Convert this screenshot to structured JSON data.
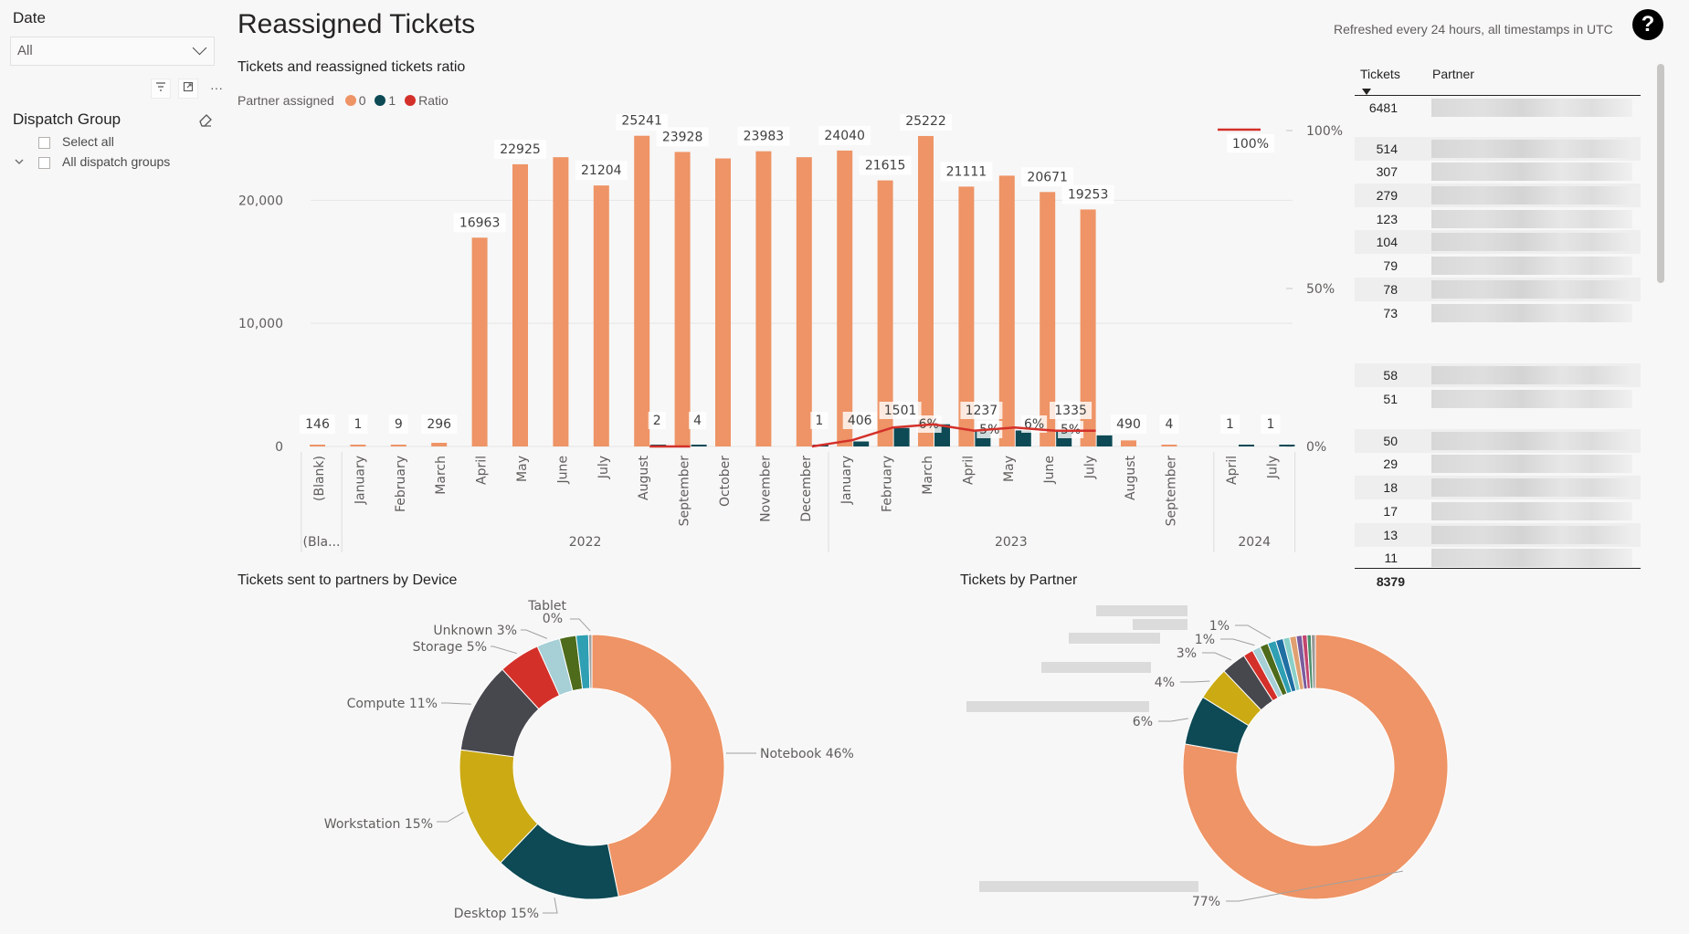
{
  "slicers": {
    "date": {
      "title": "Date",
      "selected": "All"
    },
    "dispatch_group": {
      "title": "Dispatch Group",
      "items": [
        "Select all",
        "All dispatch groups"
      ]
    }
  },
  "header": {
    "title": "Reassigned Tickets",
    "refresh_note": "Refreshed every 24 hours, all timestamps in UTC",
    "help_label": "?"
  },
  "colors": {
    "orange": "#ee9466",
    "teal": "#0d4a55",
    "red": "#d4302a",
    "grid": "#e6e6e6"
  },
  "chart_data": [
    {
      "type": "bar",
      "title": "Tickets and reassigned tickets ratio",
      "legend_title": "Partner assigned",
      "legend": [
        "0",
        "1",
        "Ratio"
      ],
      "categories": [
        "(Blank)",
        "January",
        "February",
        "March",
        "April",
        "May",
        "June",
        "July",
        "August",
        "September",
        "October",
        "November",
        "December",
        "January",
        "February",
        "March",
        "April",
        "May",
        "June",
        "July",
        "August",
        "September",
        "April",
        "July"
      ],
      "groups": [
        {
          "label": "(Bla...",
          "start": 0,
          "end": 0
        },
        {
          "label": "2022",
          "start": 1,
          "end": 12
        },
        {
          "label": "2023",
          "start": 13,
          "end": 21
        },
        {
          "label": "2024",
          "start": 22,
          "end": 23
        }
      ],
      "series": [
        {
          "name": "0",
          "values": [
            146,
            1,
            9,
            296,
            16963,
            22925,
            23500,
            21204,
            25241,
            23928,
            23400,
            23983,
            23500,
            24040,
            21615,
            25222,
            21111,
            22000,
            20671,
            19253,
            490,
            4,
            0,
            0
          ]
        },
        {
          "name": "1",
          "values": [
            0,
            0,
            0,
            0,
            0,
            0,
            0,
            0,
            2,
            4,
            0,
            0,
            1,
            406,
            1501,
            1800,
            1237,
            1300,
            1335,
            900,
            0,
            0,
            1,
            1
          ]
        },
        {
          "name": "Ratio",
          "values": [
            null,
            null,
            null,
            null,
            null,
            null,
            null,
            null,
            0,
            0,
            null,
            null,
            0,
            2,
            6,
            7,
            5,
            6,
            5,
            5,
            null,
            null,
            100,
            100
          ]
        }
      ],
      "value_labels": [
        "146",
        "1",
        "9",
        "296",
        "16963",
        "22925",
        "",
        "21204",
        "25241",
        "23928",
        "",
        "23983",
        "",
        "24040",
        "21615",
        "25222",
        "21111",
        "",
        "20671",
        "19253",
        "490",
        "4",
        "1",
        "1"
      ],
      "extra_labels": [
        {
          "index": 8,
          "text": "2"
        },
        {
          "index": 9,
          "text": "4"
        },
        {
          "index": 12,
          "text": "1"
        },
        {
          "index": 13,
          "text": "406"
        },
        {
          "index": 14,
          "text": "1501"
        },
        {
          "index": 14.7,
          "text": "6%"
        },
        {
          "index": 16,
          "text": "1237"
        },
        {
          "index": 16.2,
          "text": "5%"
        },
        {
          "index": 17.3,
          "text": "6%"
        },
        {
          "index": 18.2,
          "text": "1335"
        },
        {
          "index": 18.2,
          "text": "5%"
        }
      ],
      "ratio_top_label": "100%",
      "y_ticks": [
        "0",
        "10,000",
        "20,000"
      ],
      "y2_ticks": [
        "0%",
        "50%",
        "100%"
      ],
      "ylim": [
        0,
        27000
      ]
    },
    {
      "type": "pie",
      "title": "Tickets sent to partners by Device",
      "slices": [
        {
          "label": "Notebook",
          "pct": "46%",
          "value": 46.3,
          "color": "#ee9466"
        },
        {
          "label": "Desktop",
          "pct": "15%",
          "value": 15.2,
          "color": "#0d4a55"
        },
        {
          "label": "Workstation",
          "pct": "15%",
          "value": 14.8,
          "color": "#cbaa14"
        },
        {
          "label": "Compute",
          "pct": "11%",
          "value": 11.0,
          "color": "#47474e"
        },
        {
          "label": "Storage",
          "pct": "5%",
          "value": 5.0,
          "color": "#d4302a"
        },
        {
          "label": "Unknown",
          "pct": "3%",
          "value": 2.8,
          "color": "#a6cfd6"
        },
        {
          "label": "",
          "pct": "",
          "value": 2.0,
          "color": "#4d6b1a"
        },
        {
          "label": "",
          "pct": "",
          "value": 1.5,
          "color": "#2f9fb3"
        },
        {
          "label": "Tablet",
          "pct": "0%",
          "value": 0.4,
          "color": "#a0a0a0"
        }
      ]
    },
    {
      "type": "pie",
      "title": "Tickets by Partner",
      "slices": [
        {
          "pct": "77%",
          "value": 77.0,
          "color": "#ee9466"
        },
        {
          "pct": "6%",
          "value": 6.0,
          "color": "#0d4a55"
        },
        {
          "pct": "4%",
          "value": 4.0,
          "color": "#cbaa14"
        },
        {
          "pct": "3%",
          "value": 3.0,
          "color": "#47474e"
        },
        {
          "pct": "",
          "value": 1.2,
          "color": "#d4302a"
        },
        {
          "pct": "1%",
          "value": 1.0,
          "color": "#a6cfd6"
        },
        {
          "pct": "",
          "value": 1.0,
          "color": "#4d6b1a"
        },
        {
          "pct": "1%",
          "value": 1.0,
          "color": "#2f9fb3"
        },
        {
          "pct": "",
          "value": 0.9,
          "color": "#1f6fa3"
        },
        {
          "pct": "",
          "value": 0.8,
          "color": "#8ad0c8"
        },
        {
          "pct": "",
          "value": 0.8,
          "color": "#e0a070"
        },
        {
          "pct": "",
          "value": 0.7,
          "color": "#7a5c9e"
        },
        {
          "pct": "",
          "value": 0.6,
          "color": "#c2456e"
        },
        {
          "pct": "",
          "value": 0.5,
          "color": "#4a8f6c"
        },
        {
          "pct": "",
          "value": 0.5,
          "color": "#999999"
        }
      ]
    }
  ],
  "table": {
    "columns": [
      "Tickets",
      "Partner"
    ],
    "rows": [
      "6481",
      "514",
      "307",
      "279",
      "123",
      "104",
      "79",
      "78",
      "73",
      "58",
      "51",
      "50",
      "29",
      "18",
      "17",
      "13",
      "11"
    ],
    "total": "8379"
  }
}
